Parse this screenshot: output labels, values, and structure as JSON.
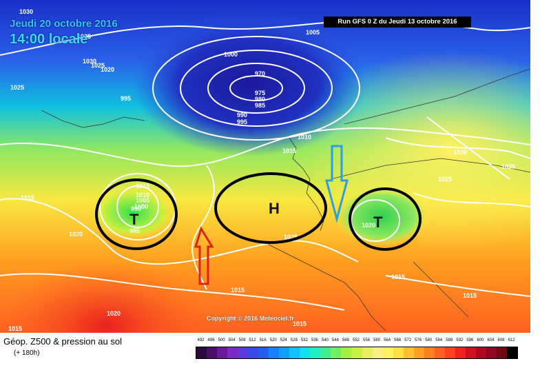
{
  "header": {
    "date": "Jeudi 20 octobre 2016",
    "hour": "14:00 locale",
    "run": "Run GFS 0 Z du Jeudi 13 octobre 2016"
  },
  "copyright": "Copyright © 2016 Meteociel.fr",
  "footer": {
    "title": "Géop. Z500 & pression au sol",
    "subtitle": "(+ 180h)"
  },
  "scale": {
    "labels": [
      "492",
      "496",
      "500",
      "504",
      "508",
      "512",
      "516",
      "520",
      "524",
      "528",
      "532",
      "536",
      "540",
      "544",
      "548",
      "552",
      "556",
      "560",
      "564",
      "568",
      "572",
      "576",
      "580",
      "584",
      "588",
      "592",
      "596",
      "600",
      "604",
      "608",
      "612"
    ],
    "colors": [
      "#2a0a3a",
      "#4a0f6a",
      "#6a1a9a",
      "#7a2ac0",
      "#5a3ad8",
      "#3a4ae8",
      "#2060f0",
      "#1a80ff",
      "#10a0ff",
      "#10c0ff",
      "#10e0f0",
      "#20f0c0",
      "#40f090",
      "#70f060",
      "#a0f040",
      "#c8f040",
      "#e8f060",
      "#f8f080",
      "#fff060",
      "#ffe040",
      "#ffc030",
      "#ffa020",
      "#ff8020",
      "#ff6020",
      "#ff4020",
      "#f02020",
      "#d01020",
      "#b00a20",
      "#900820",
      "#700a10",
      "#000000"
    ]
  },
  "isobars": [
    "1030",
    "1035",
    "1030",
    "1025",
    "1020",
    "995",
    "1025",
    "1000",
    "970",
    "975",
    "980",
    "985",
    "990",
    "995",
    "1005",
    "1010",
    "1015",
    "1030",
    "1035",
    "1025",
    "1015",
    "1010",
    "1005",
    "1000",
    "990",
    "995",
    "1020",
    "1015",
    "1020",
    "1025",
    "1015",
    "1015",
    "1015",
    "1015",
    "1020",
    "1015"
  ],
  "centers": [
    {
      "letter": "T"
    },
    {
      "letter": "H"
    },
    {
      "letter": "T"
    }
  ],
  "colors": {
    "arrow_up": "#e0201a",
    "arrow_down": "#2aa0e0",
    "circles": "#000000"
  }
}
